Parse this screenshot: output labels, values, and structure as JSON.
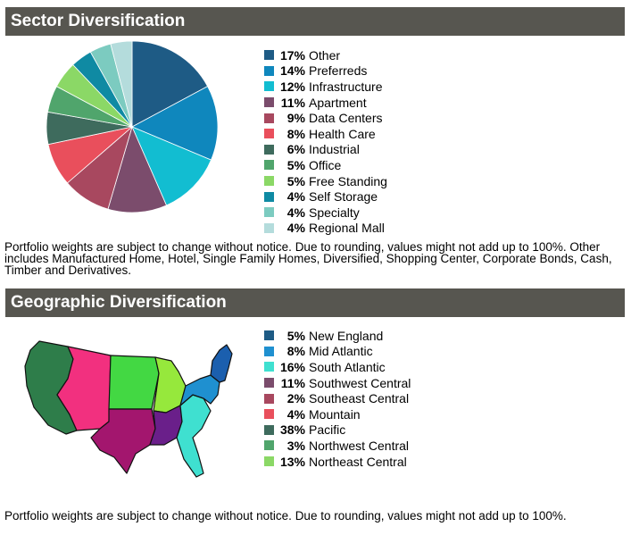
{
  "sector": {
    "title": "Sector Diversification",
    "note": "Portfolio weights are subject to change without notice. Due to rounding, values might not add up to 100%. Other includes Manufactured Home, Hotel, Single Family Homes, Diversified, Shopping Center, Corporate Bonds, Cash, Timber and Derivatives."
  },
  "geographic": {
    "title": "Geographic Diversification",
    "note": "Portfolio weights are subject to change without notice. Due to rounding, values might not add up to 100%.",
    "map_icon": "us-map-icon"
  },
  "chart_data": [
    {
      "type": "pie",
      "title": "Sector Diversification",
      "unit": "%",
      "legend_position": "right",
      "slices": [
        {
          "label": "Other",
          "value": 17,
          "color": "#1e5b85"
        },
        {
          "label": "Preferreds",
          "value": 14,
          "color": "#0f87bd"
        },
        {
          "label": "Infrastructure",
          "value": 12,
          "color": "#12bdd1"
        },
        {
          "label": "Apartment",
          "value": 11,
          "color": "#7b4c6c"
        },
        {
          "label": "Data Centers",
          "value": 9,
          "color": "#a8485f"
        },
        {
          "label": "Health Care",
          "value": 8,
          "color": "#e94f5c"
        },
        {
          "label": "Industrial",
          "value": 6,
          "color": "#3e6b5d"
        },
        {
          "label": "Office",
          "value": 5,
          "color": "#50a56c"
        },
        {
          "label": "Free Standing",
          "value": 5,
          "color": "#8bd866"
        },
        {
          "label": "Self Storage",
          "value": 4,
          "color": "#0f8aa3"
        },
        {
          "label": "Specialty",
          "value": 4,
          "color": "#7ccbc0"
        },
        {
          "label": "Regional Mall",
          "value": 4,
          "color": "#b4dcdc"
        }
      ]
    },
    {
      "type": "map-legend",
      "title": "Geographic Diversification",
      "unit": "%",
      "legend_position": "right",
      "regions": [
        {
          "label": "New England",
          "value": 5,
          "color": "#1e5b85"
        },
        {
          "label": "Mid Atlantic",
          "value": 8,
          "color": "#1f90d0"
        },
        {
          "label": "South Atlantic",
          "value": 16,
          "color": "#3fe0d0"
        },
        {
          "label": "Southwest Central",
          "value": 11,
          "color": "#7b4c6c"
        },
        {
          "label": "Southeast Central",
          "value": 2,
          "color": "#a8485f"
        },
        {
          "label": "Mountain",
          "value": 4,
          "color": "#e94f5c"
        },
        {
          "label": "Pacific",
          "value": 38,
          "color": "#3e6b5d"
        },
        {
          "label": "Northwest Central",
          "value": 3,
          "color": "#50a56c"
        },
        {
          "label": "Northeast Central",
          "value": 13,
          "color": "#8bd866"
        }
      ],
      "map_colors": {
        "pacific": "#2e7d4a",
        "mountain": "#f2307f",
        "southwest_central": "#a3166e",
        "southeast_central": "#6a1f8a",
        "northwest_central": "#43d843",
        "northeast_central": "#96e83c",
        "south_atlantic": "#3fe0d0",
        "mid_atlantic": "#1f90d0",
        "new_england": "#1b5fae"
      }
    }
  ]
}
